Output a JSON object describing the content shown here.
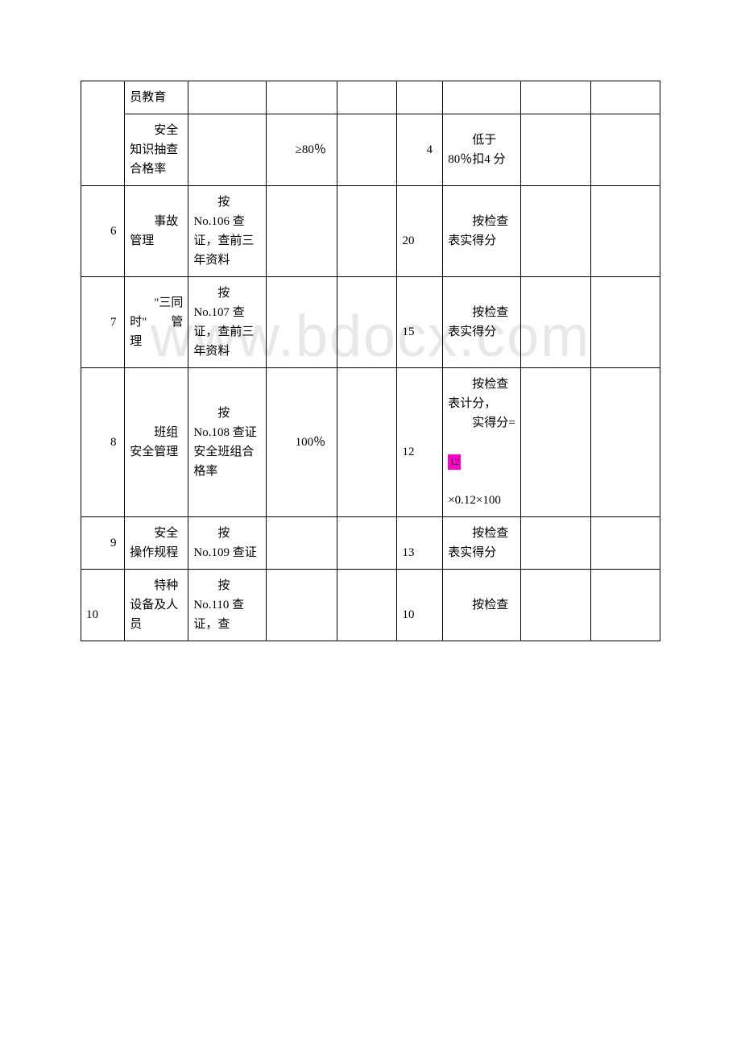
{
  "watermark": "www.bdocx.com",
  "rows": [
    {
      "num": "",
      "name": "员教育",
      "method": "",
      "std": "",
      "score": "",
      "criteria": "",
      "name_indent": false
    },
    {
      "num": "",
      "name": "　　安全知识抽查合格率",
      "method": "",
      "std": "　　≥80％",
      "score": "　　4",
      "criteria": "　　低于 80％扣4 分",
      "name_indent": false
    },
    {
      "num": "　　6",
      "name": "　　事故管理",
      "method": "　　按No.106 查证，查前三年资料",
      "std": "",
      "score": "　　20",
      "criteria": "　　按检查表实得分",
      "name_indent": false
    },
    {
      "num": "　　7",
      "name": "　　\"三同时\"　　管理",
      "method": "　　按No.107 查证，查前三年资料",
      "std": "",
      "score": "　　15",
      "criteria": "　　按检查表实得分",
      "name_indent": false
    },
    {
      "num": "　　8",
      "name": "　　班组安全管理",
      "method": "　　按No.108 查证安全班组合格率",
      "std": "　　100％",
      "score": "　　12",
      "criteria_html": true,
      "criteria_parts": {
        "p1": "　　按检查表计分，",
        "p2": "　　实得分=",
        "hl": "12",
        "p3": "×0.12×100"
      }
    },
    {
      "num": "　　9",
      "name": "　　安全操作规程",
      "method": "　　按No.109 查证",
      "std": "",
      "score": "　　13",
      "criteria": "　　按检查表实得分",
      "name_indent": false
    },
    {
      "num": "　　10",
      "name": "　　特种设备及人员",
      "method": "　　按No.110 查证，查",
      "std": "",
      "score": "　　10",
      "criteria": "　　按检查",
      "name_indent": false
    }
  ]
}
